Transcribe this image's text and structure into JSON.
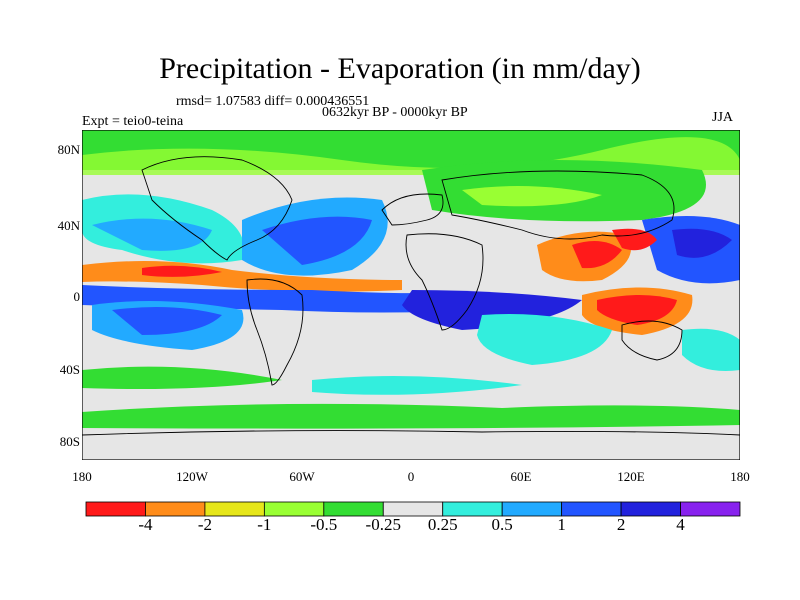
{
  "title": "Precipitation - Evaporation (in mm/day)",
  "stats": "rmsd= 1.07583  diff= 0.000436551",
  "period": "0632kyr BP - 0000kyr BP",
  "experiment": "Expt = teio0-teina",
  "season": "JJA",
  "map": {
    "lat_ticks": [
      "80N",
      "40N",
      "0",
      "40S",
      "80S"
    ],
    "lon_ticks": [
      "180",
      "120W",
      "60W",
      "0",
      "60E",
      "120E",
      "180"
    ]
  },
  "colorbar": {
    "colors": [
      "#ff1a1a",
      "#ff8c1a",
      "#e6e61a",
      "#99ff33",
      "#33dd33",
      "#e6e6e6",
      "#33eedd",
      "#22aaff",
      "#2255ff",
      "#2222dd",
      "#8822ee"
    ],
    "labels": [
      "-4",
      "-2",
      "-1",
      "-0.5",
      "-0.25",
      "0.25",
      "0.5",
      "1",
      "2",
      "4"
    ]
  },
  "colors": {
    "strong_negative": "#ff1a1a",
    "neutral": "#e6e6e6",
    "strong_positive": "#2222dd"
  }
}
